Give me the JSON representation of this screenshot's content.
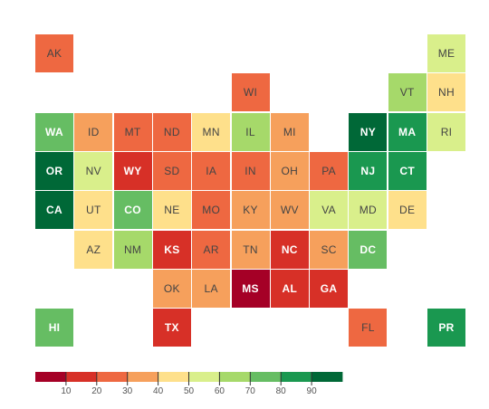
{
  "chart_data": {
    "type": "heatmap",
    "title": "",
    "subtitle": "",
    "value_range": [
      0,
      100
    ],
    "tiles": [
      {
        "state": "AK",
        "bin": 3,
        "col": 0,
        "row": 0
      },
      {
        "state": "ME",
        "bin": 6,
        "col": 10,
        "row": 0
      },
      {
        "state": "WI",
        "bin": 3,
        "col": 5,
        "row": 1
      },
      {
        "state": "VT",
        "bin": 7,
        "col": 9,
        "row": 1
      },
      {
        "state": "NH",
        "bin": 5,
        "col": 10,
        "row": 1
      },
      {
        "state": "WA",
        "bin": 8,
        "col": 0,
        "row": 2
      },
      {
        "state": "ID",
        "bin": 4,
        "col": 1,
        "row": 2
      },
      {
        "state": "MT",
        "bin": 3,
        "col": 2,
        "row": 2
      },
      {
        "state": "ND",
        "bin": 3,
        "col": 3,
        "row": 2
      },
      {
        "state": "MN",
        "bin": 5,
        "col": 4,
        "row": 2
      },
      {
        "state": "IL",
        "bin": 7,
        "col": 5,
        "row": 2
      },
      {
        "state": "MI",
        "bin": 4,
        "col": 6,
        "row": 2
      },
      {
        "state": "NY",
        "bin": 10,
        "col": 8,
        "row": 2
      },
      {
        "state": "MA",
        "bin": 9,
        "col": 9,
        "row": 2
      },
      {
        "state": "RI",
        "bin": 6,
        "col": 10,
        "row": 2
      },
      {
        "state": "OR",
        "bin": 10,
        "col": 0,
        "row": 3
      },
      {
        "state": "NV",
        "bin": 6,
        "col": 1,
        "row": 3
      },
      {
        "state": "WY",
        "bin": 2,
        "col": 2,
        "row": 3
      },
      {
        "state": "SD",
        "bin": 3,
        "col": 3,
        "row": 3
      },
      {
        "state": "IA",
        "bin": 3,
        "col": 4,
        "row": 3
      },
      {
        "state": "IN",
        "bin": 3,
        "col": 5,
        "row": 3
      },
      {
        "state": "OH",
        "bin": 4,
        "col": 6,
        "row": 3
      },
      {
        "state": "PA",
        "bin": 3,
        "col": 7,
        "row": 3
      },
      {
        "state": "NJ",
        "bin": 9,
        "col": 8,
        "row": 3
      },
      {
        "state": "CT",
        "bin": 9,
        "col": 9,
        "row": 3
      },
      {
        "state": "CA",
        "bin": 10,
        "col": 0,
        "row": 4
      },
      {
        "state": "UT",
        "bin": 5,
        "col": 1,
        "row": 4
      },
      {
        "state": "CO",
        "bin": 8,
        "col": 2,
        "row": 4
      },
      {
        "state": "NE",
        "bin": 5,
        "col": 3,
        "row": 4
      },
      {
        "state": "MO",
        "bin": 3,
        "col": 4,
        "row": 4
      },
      {
        "state": "KY",
        "bin": 4,
        "col": 5,
        "row": 4
      },
      {
        "state": "WV",
        "bin": 4,
        "col": 6,
        "row": 4
      },
      {
        "state": "VA",
        "bin": 6,
        "col": 7,
        "row": 4
      },
      {
        "state": "MD",
        "bin": 6,
        "col": 8,
        "row": 4
      },
      {
        "state": "DE",
        "bin": 5,
        "col": 9,
        "row": 4
      },
      {
        "state": "AZ",
        "bin": 5,
        "col": 1,
        "row": 5
      },
      {
        "state": "NM",
        "bin": 7,
        "col": 2,
        "row": 5
      },
      {
        "state": "KS",
        "bin": 2,
        "col": 3,
        "row": 5
      },
      {
        "state": "AR",
        "bin": 3,
        "col": 4,
        "row": 5
      },
      {
        "state": "TN",
        "bin": 4,
        "col": 5,
        "row": 5
      },
      {
        "state": "NC",
        "bin": 2,
        "col": 6,
        "row": 5
      },
      {
        "state": "SC",
        "bin": 4,
        "col": 7,
        "row": 5
      },
      {
        "state": "DC",
        "bin": 8,
        "col": 8,
        "row": 5
      },
      {
        "state": "OK",
        "bin": 4,
        "col": 3,
        "row": 6
      },
      {
        "state": "LA",
        "bin": 4,
        "col": 4,
        "row": 6
      },
      {
        "state": "MS",
        "bin": 1,
        "col": 5,
        "row": 6
      },
      {
        "state": "AL",
        "bin": 2,
        "col": 6,
        "row": 6
      },
      {
        "state": "GA",
        "bin": 2,
        "col": 7,
        "row": 6
      },
      {
        "state": "HI",
        "bin": 8,
        "col": 0,
        "row": 7
      },
      {
        "state": "TX",
        "bin": 2,
        "col": 3,
        "row": 7
      },
      {
        "state": "FL",
        "bin": 3,
        "col": 8,
        "row": 7
      },
      {
        "state": "PR",
        "bin": 9,
        "col": 10,
        "row": 7
      }
    ],
    "legend": {
      "type": "color-scale",
      "placement": "bottom-left",
      "colors": [
        "#a50026",
        "#d73027",
        "#ee6841",
        "#f6a05c",
        "#fee08b",
        "#d9ef8b",
        "#a6d96a",
        "#66bd63",
        "#1a9850",
        "#006837"
      ],
      "tick_labels": [
        "10",
        "20",
        "30",
        "40",
        "50",
        "60",
        "70",
        "80",
        "90"
      ]
    },
    "bin_colors": [
      "#a50026",
      "#d73027",
      "#ee6841",
      "#f6a05c",
      "#fee08b",
      "#d9ef8b",
      "#a6d96a",
      "#66bd63",
      "#1a9850",
      "#006837"
    ]
  }
}
